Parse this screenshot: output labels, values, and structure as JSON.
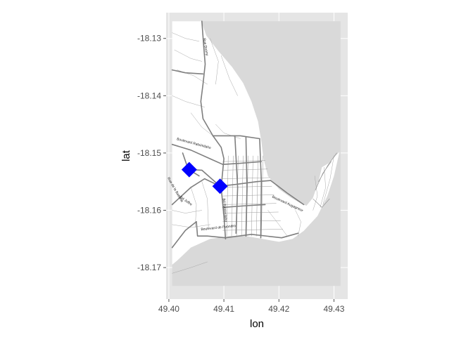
{
  "chart_data": {
    "type": "scatter",
    "title": "",
    "xlabel": "lon",
    "ylabel": "lat",
    "xlim": [
      49.3995,
      49.4325
    ],
    "ylim": [
      -18.1755,
      -18.1255
    ],
    "x_ticks": [
      49.4,
      49.41,
      49.42,
      49.43
    ],
    "x_tick_labels": [
      "49.40",
      "49.41",
      "49.42",
      "49.43"
    ],
    "y_ticks": [
      -18.13,
      -18.14,
      -18.15,
      -18.16,
      -18.17
    ],
    "y_tick_labels": [
      "-18.13",
      "-18.14",
      "-18.15",
      "-18.16",
      "-18.17"
    ],
    "map_extent": {
      "lon": [
        49.4006,
        49.4312
      ],
      "lat": [
        -18.1732,
        -18.127
      ]
    },
    "grid": true,
    "panel_background": "#e5e5e5",
    "land_color": "#ffffff",
    "sea_color": "#d9d9d9",
    "points": [
      {
        "lon": 49.4037,
        "lat": -18.1529,
        "marker": "diamond",
        "color": "#0000ff"
      },
      {
        "lon": 49.4093,
        "lat": -18.1558,
        "marker": "diamond",
        "color": "#0000ff"
      }
    ],
    "street_labels": [
      {
        "text": "Rue Doany",
        "lon": 49.4065,
        "lat": -18.1315,
        "angle": 80
      },
      {
        "text": "Boulevard Ratsimilaho",
        "lon": 49.4045,
        "lat": -18.1485,
        "angle": 15
      },
      {
        "text": "Bd Joffre",
        "lon": 49.403,
        "lat": -18.1585,
        "angle": 35
      },
      {
        "text": "Rue de la Batterie",
        "lon": 49.401,
        "lat": -18.1565,
        "angle": 60
      },
      {
        "text": "Bd Ratsimilaho",
        "lon": 49.41,
        "lat": -18.16,
        "angle": 85
      },
      {
        "text": "Boulevard Augagneur",
        "lon": 49.4215,
        "lat": -18.159,
        "angle": 25
      },
      {
        "text": "Boulevard de l'Ivondro",
        "lon": 49.409,
        "lat": -18.1632,
        "angle": -6
      }
    ]
  }
}
